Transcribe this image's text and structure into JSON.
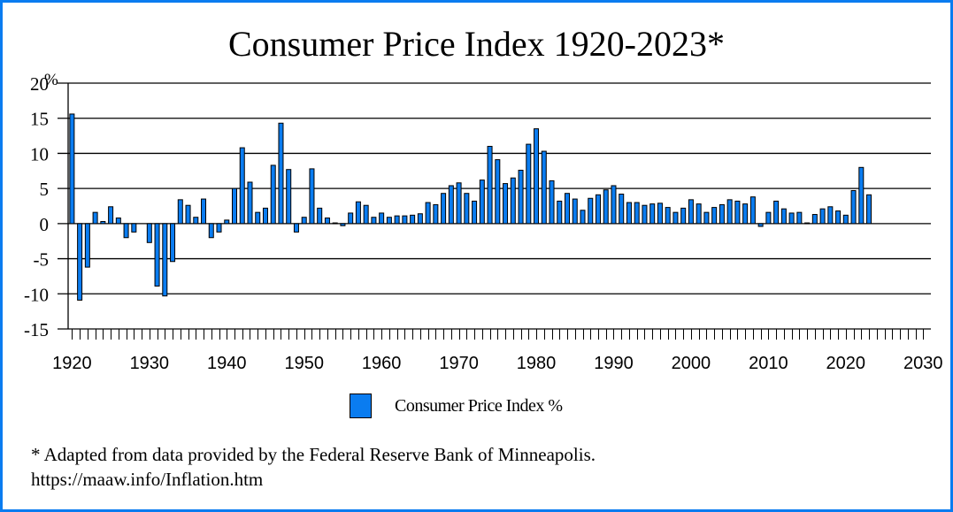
{
  "chart_data": {
    "type": "bar",
    "title": "Consumer Price Index 1920-2023*",
    "xlabel": "",
    "ylabel": "%",
    "ylim": [
      -15,
      20
    ],
    "xlim": [
      1920,
      2030
    ],
    "yticks": [
      20,
      15,
      10,
      5,
      0,
      -5,
      -10,
      -15
    ],
    "ytick_labels": [
      "20",
      "15",
      "10",
      "5",
      "0",
      "-5",
      "-10",
      "-15"
    ],
    "xticks": [
      1920,
      1930,
      1940,
      1950,
      1960,
      1970,
      1980,
      1990,
      2000,
      2010,
      2020,
      2030
    ],
    "xtick_labels": [
      "1920",
      "1930",
      "1940",
      "1950",
      "1960",
      "1970",
      "1980",
      "1990",
      "2000",
      "2010",
      "2020",
      "2030"
    ],
    "grid": true,
    "legend_position": "bottom-center",
    "series": [
      {
        "name": "Consumer Price Index %",
        "color": "#0a7cf0",
        "x": [
          1920,
          1921,
          1922,
          1923,
          1924,
          1925,
          1926,
          1927,
          1928,
          1929,
          1930,
          1931,
          1932,
          1933,
          1934,
          1935,
          1936,
          1937,
          1938,
          1939,
          1940,
          1941,
          1942,
          1943,
          1944,
          1945,
          1946,
          1947,
          1948,
          1949,
          1950,
          1951,
          1952,
          1953,
          1954,
          1955,
          1956,
          1957,
          1958,
          1959,
          1960,
          1961,
          1962,
          1963,
          1964,
          1965,
          1966,
          1967,
          1968,
          1969,
          1970,
          1971,
          1972,
          1973,
          1974,
          1975,
          1976,
          1977,
          1978,
          1979,
          1980,
          1981,
          1982,
          1983,
          1984,
          1985,
          1986,
          1987,
          1988,
          1989,
          1990,
          1991,
          1992,
          1993,
          1994,
          1995,
          1996,
          1997,
          1998,
          1999,
          2000,
          2001,
          2002,
          2003,
          2004,
          2005,
          2006,
          2007,
          2008,
          2009,
          2010,
          2011,
          2012,
          2013,
          2014,
          2015,
          2016,
          2017,
          2018,
          2019,
          2020,
          2021,
          2022,
          2023
        ],
        "values": [
          15.6,
          -10.9,
          -6.2,
          1.6,
          0.3,
          2.4,
          0.8,
          -2.0,
          -1.2,
          0,
          -2.7,
          -8.9,
          -10.3,
          -5.4,
          3.4,
          2.6,
          0.9,
          3.5,
          -2.0,
          -1.2,
          0.5,
          5.0,
          10.8,
          5.9,
          1.6,
          2.2,
          8.3,
          14.3,
          7.7,
          -1.2,
          0.9,
          7.8,
          2.2,
          0.8,
          0.1,
          -0.3,
          1.5,
          3.1,
          2.6,
          0.9,
          1.5,
          0.9,
          1.1,
          1.1,
          1.2,
          1.4,
          3.0,
          2.7,
          4.3,
          5.4,
          5.8,
          4.3,
          3.2,
          6.2,
          11.0,
          9.1,
          5.7,
          6.5,
          7.6,
          11.3,
          13.5,
          10.3,
          6.1,
          3.2,
          4.3,
          3.5,
          1.9,
          3.6,
          4.1,
          4.8,
          5.4,
          4.2,
          3.0,
          3.0,
          2.6,
          2.8,
          2.9,
          2.3,
          1.6,
          2.2,
          3.4,
          2.8,
          1.6,
          2.3,
          2.7,
          3.4,
          3.2,
          2.8,
          3.8,
          -0.4,
          1.6,
          3.2,
          2.1,
          1.5,
          1.6,
          0.1,
          1.3,
          2.1,
          2.4,
          1.8,
          1.2,
          4.7,
          8.0,
          4.1
        ]
      }
    ],
    "legend": [
      "Consumer Price Index %"
    ]
  },
  "footnote": {
    "line1": "* Adapted from data provided by the Federal Reserve Bank of Minneapolis.",
    "line2": "https://maaw.info/Inflation.htm"
  }
}
